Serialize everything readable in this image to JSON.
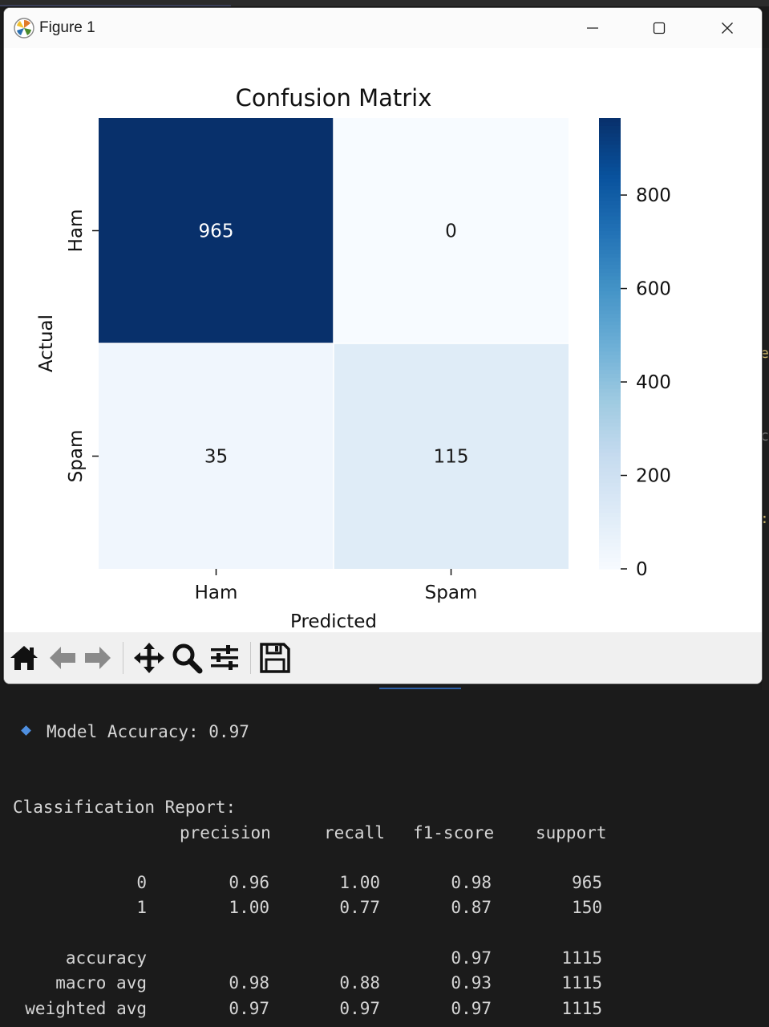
{
  "window": {
    "title": "Figure 1"
  },
  "chart_data": {
    "type": "heatmap",
    "title": "Confusion Matrix",
    "xlabel": "Predicted",
    "ylabel": "Actual",
    "x_categories": [
      "Ham",
      "Spam"
    ],
    "y_categories": [
      "Ham",
      "Spam"
    ],
    "values": [
      [
        965,
        0
      ],
      [
        35,
        115
      ]
    ],
    "colormap": "Blues",
    "colorbar": {
      "ticks": [
        0,
        200,
        400,
        600,
        800
      ],
      "range": [
        0,
        965
      ]
    }
  },
  "toolbar": {
    "buttons": [
      "home-icon",
      "back-icon",
      "forward-icon",
      "pan-icon",
      "zoom-icon",
      "configure-subplots-icon",
      "save-icon"
    ]
  },
  "console": {
    "accuracy_line": "Model Accuracy: 0.97",
    "report_title": "Classification Report:",
    "headers": [
      "precision",
      "recall",
      "f1-score",
      "support"
    ],
    "rows": [
      {
        "label": "0",
        "precision": "0.96",
        "recall": "1.00",
        "f1": "0.98",
        "support": "965"
      },
      {
        "label": "1",
        "precision": "1.00",
        "recall": "0.77",
        "f1": "0.87",
        "support": "150"
      },
      {
        "label": "accuracy",
        "precision": "",
        "recall": "",
        "f1": "0.97",
        "support": "1115"
      },
      {
        "label": "macro avg",
        "precision": "0.98",
        "recall": "0.88",
        "f1": "0.93",
        "support": "1115"
      },
      {
        "label": "weighted avg",
        "precision": "0.97",
        "recall": "0.97",
        "f1": "0.97",
        "support": "1115"
      }
    ]
  }
}
